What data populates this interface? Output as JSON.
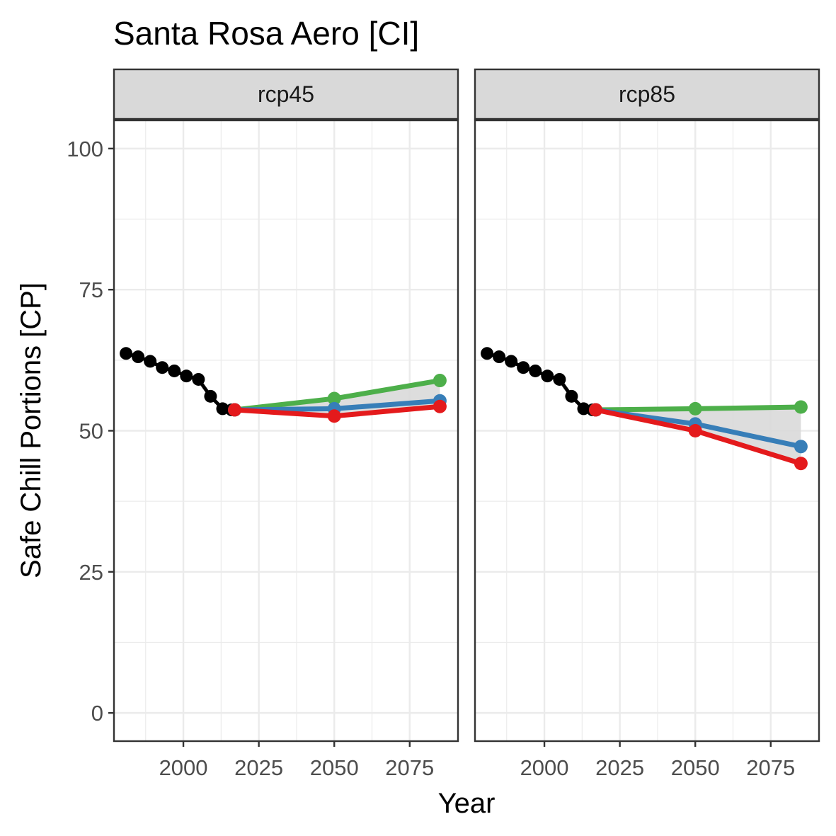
{
  "chart_data": {
    "type": "line",
    "title": "Santa Rosa Aero [CI]",
    "xlabel": "Year",
    "ylabel": "Safe Chill Portions [CP]",
    "xlim": [
      1977,
      2091
    ],
    "ylim": [
      -5,
      105
    ],
    "xticks": [
      2000,
      2025,
      2050,
      2075
    ],
    "xtick_labels": [
      "2000",
      "2025",
      "2050",
      "2075"
    ],
    "yticks": [
      0,
      25,
      50,
      75,
      100
    ],
    "ytick_labels": [
      "0",
      "25",
      "50",
      "75",
      "100"
    ],
    "grid": true,
    "colors": {
      "historic": "#000000",
      "high": "#4daf4a",
      "mid": "#377eb8",
      "low": "#e41a1c",
      "ribbon": "#d9d9d9",
      "strip_fill": "#d9d9d9",
      "panel_border": "#333333",
      "grid": "#ebebeb"
    },
    "historic": {
      "x": [
        1981,
        1985,
        1989,
        1993,
        1997,
        2001,
        2005,
        2009,
        2013,
        2016
      ],
      "y": [
        63.7,
        63.1,
        62.3,
        61.2,
        60.6,
        59.7,
        59.1,
        56.1,
        53.9,
        53.7
      ]
    },
    "panels": [
      {
        "label": "rcp45",
        "series": [
          {
            "key": "high",
            "x": [
              2017,
              2050,
              2085
            ],
            "y": [
              53.7,
              55.7,
              58.9
            ]
          },
          {
            "key": "mid",
            "x": [
              2017,
              2050,
              2085
            ],
            "y": [
              53.7,
              53.9,
              55.3
            ]
          },
          {
            "key": "low",
            "x": [
              2017,
              2050,
              2085
            ],
            "y": [
              53.7,
              52.6,
              54.3
            ]
          }
        ]
      },
      {
        "label": "rcp85",
        "series": [
          {
            "key": "high",
            "x": [
              2017,
              2050,
              2085
            ],
            "y": [
              53.7,
              53.9,
              54.2
            ]
          },
          {
            "key": "mid",
            "x": [
              2017,
              2050,
              2085
            ],
            "y": [
              53.7,
              51.2,
              47.2
            ]
          },
          {
            "key": "low",
            "x": [
              2017,
              2050,
              2085
            ],
            "y": [
              53.7,
              50.0,
              44.2
            ]
          }
        ]
      }
    ]
  }
}
